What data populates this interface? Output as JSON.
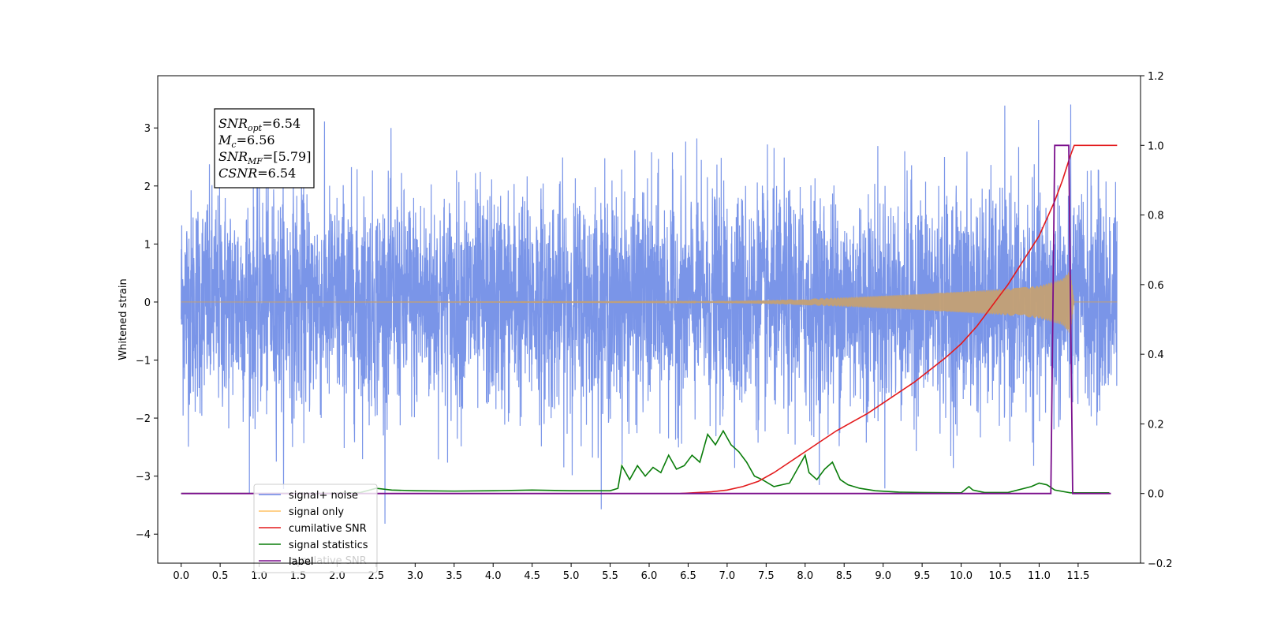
{
  "chart_data": {
    "type": "line",
    "ylabel": "Whitened strain",
    "x_ticks": [
      "0.0",
      "0.5",
      "1.0",
      "1.5",
      "2.0",
      "2.5",
      "3.0",
      "3.5",
      "4.0",
      "4.5",
      "5.0",
      "5.5",
      "6.0",
      "6.5",
      "7.0",
      "7.5",
      "8.0",
      "8.5",
      "9.0",
      "9.5",
      "10.0",
      "10.5",
      "11.0",
      "11.5"
    ],
    "xlim": [
      -0.3,
      12.3
    ],
    "ylim_left": [
      -4.5,
      3.9
    ],
    "ylim_right": [
      -0.2,
      1.2
    ],
    "y_ticks_left": [
      "−4",
      "−3",
      "−2",
      "−1",
      "0",
      "1",
      "2",
      "3"
    ],
    "y_ticks_right": [
      "−0.2",
      "0.0",
      "0.2",
      "0.4",
      "0.6",
      "0.8",
      "1.0",
      "1.2"
    ],
    "annotation": {
      "lines": [
        {
          "var": "SNR",
          "sub": "opt",
          "value": "=6.54"
        },
        {
          "var": "M",
          "sub": "c",
          "value": "=6.56"
        },
        {
          "var": "SNR",
          "sub": "MF",
          "value": "=[5.79]"
        },
        {
          "var": "CSNR",
          "sub": "",
          "value": "=6.54"
        }
      ]
    },
    "legend": {
      "position": "lower-left",
      "entries": [
        {
          "label": "signal+ noise",
          "color": "#6b89e6"
        },
        {
          "label": "signal only",
          "color": "#ffc266"
        },
        {
          "label": "cumilative SNR",
          "color": "#e31a1c"
        },
        {
          "label": "signal statistics",
          "color": "#0a7d0a"
        },
        {
          "label": "label",
          "color": "#7a0f8c"
        }
      ],
      "occluded_text": "cumilative SNR"
    },
    "series": [
      {
        "name": "signal+ noise",
        "axis": "left",
        "color": "#6b89e6",
        "x_range": [
          0.0,
          12.0
        ],
        "description_stats": {
          "mean": 0.0,
          "std": 0.95,
          "max": 3.55,
          "min": -4.1
        }
      },
      {
        "name": "signal only",
        "axis": "left",
        "color": "#c4a074",
        "x_range": [
          0.0,
          12.0
        ],
        "envelope_points": [
          [
            0.0,
            0.0
          ],
          [
            6.5,
            0.005
          ],
          [
            7.5,
            0.03
          ],
          [
            8.5,
            0.08
          ],
          [
            9.5,
            0.14
          ],
          [
            10.5,
            0.22
          ],
          [
            11.0,
            0.28
          ],
          [
            11.3,
            0.4
          ],
          [
            11.4,
            0.55
          ],
          [
            11.45,
            0.0
          ],
          [
            12.0,
            0.0
          ]
        ]
      },
      {
        "name": "cumilative SNR",
        "axis": "right",
        "color": "#e31a1c",
        "x": [
          6.4,
          6.8,
          7.0,
          7.2,
          7.4,
          7.6,
          7.8,
          8.0,
          8.2,
          8.4,
          8.6,
          8.8,
          9.0,
          9.2,
          9.4,
          9.6,
          9.8,
          10.0,
          10.2,
          10.4,
          10.6,
          10.8,
          11.0,
          11.2,
          11.3,
          11.4,
          11.45,
          12.0
        ],
        "values": [
          0.0,
          0.005,
          0.01,
          0.02,
          0.035,
          0.06,
          0.09,
          0.12,
          0.15,
          0.18,
          0.205,
          0.23,
          0.26,
          0.29,
          0.32,
          0.355,
          0.39,
          0.43,
          0.48,
          0.54,
          0.6,
          0.67,
          0.74,
          0.84,
          0.9,
          0.97,
          1.0,
          1.0
        ]
      },
      {
        "name": "signal statistics",
        "axis": "right",
        "color": "#0a7d0a",
        "x": [
          0.0,
          1.0,
          2.0,
          2.3,
          2.5,
          2.7,
          3.0,
          3.5,
          4.0,
          4.5,
          5.0,
          5.5,
          5.6,
          5.65,
          5.75,
          5.85,
          5.95,
          6.05,
          6.15,
          6.25,
          6.35,
          6.45,
          6.55,
          6.65,
          6.75,
          6.85,
          6.95,
          7.05,
          7.15,
          7.25,
          7.35,
          7.45,
          7.6,
          7.8,
          8.0,
          8.05,
          8.15,
          8.25,
          8.35,
          8.45,
          8.55,
          8.7,
          8.9,
          9.2,
          9.5,
          10.0,
          10.1,
          10.15,
          10.3,
          10.6,
          10.9,
          11.0,
          11.1,
          11.2,
          11.4,
          11.9
        ],
        "values": [
          0.0,
          0.0,
          0.001,
          0.003,
          0.015,
          0.01,
          0.008,
          0.007,
          0.008,
          0.01,
          0.008,
          0.008,
          0.015,
          0.08,
          0.04,
          0.08,
          0.05,
          0.075,
          0.06,
          0.11,
          0.07,
          0.08,
          0.11,
          0.09,
          0.17,
          0.14,
          0.18,
          0.14,
          0.12,
          0.09,
          0.05,
          0.04,
          0.02,
          0.03,
          0.11,
          0.06,
          0.04,
          0.07,
          0.09,
          0.04,
          0.025,
          0.015,
          0.008,
          0.004,
          0.003,
          0.002,
          0.02,
          0.01,
          0.003,
          0.003,
          0.02,
          0.03,
          0.025,
          0.01,
          0.002,
          0.002
        ]
      },
      {
        "name": "label",
        "axis": "right",
        "color": "#7a0f8c",
        "x": [
          0.0,
          11.15,
          11.2,
          11.38,
          11.43,
          11.92
        ],
        "values": [
          0.0,
          0.0,
          1.0,
          1.0,
          0.0,
          0.0
        ]
      }
    ]
  }
}
